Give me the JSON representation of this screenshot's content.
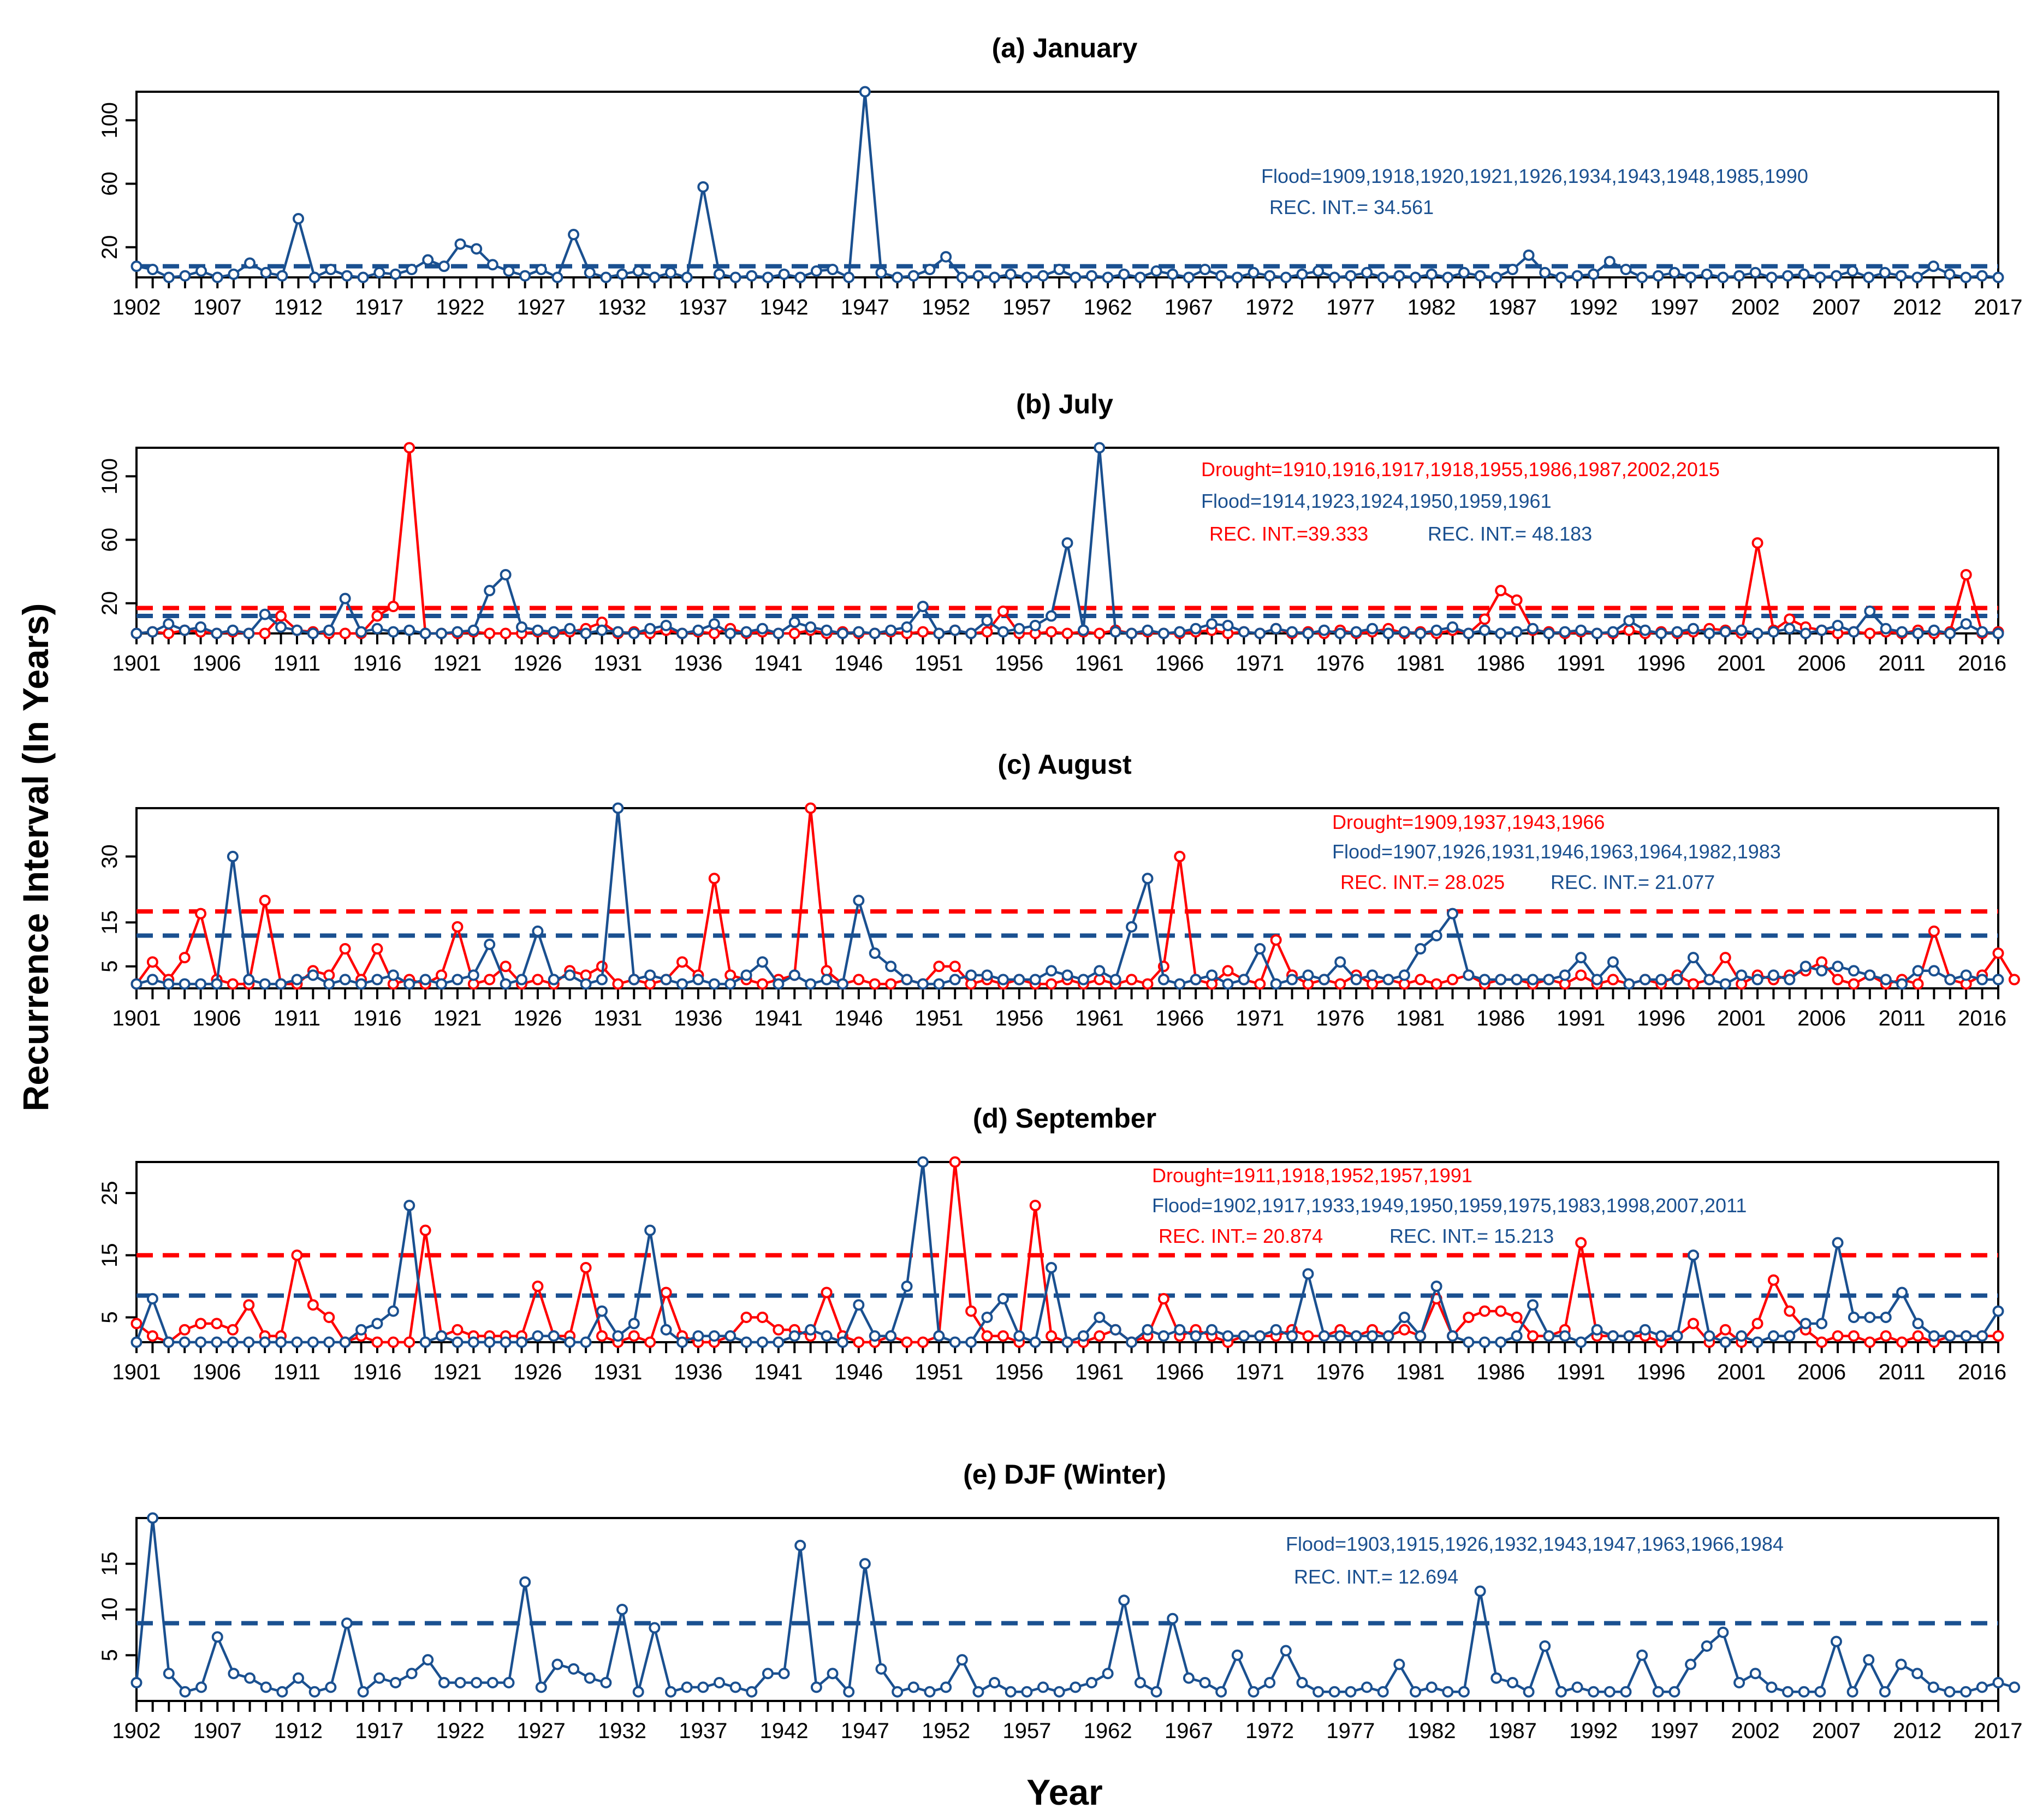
{
  "figure": {
    "ylabel": "Recurrence Interval (In Years)",
    "xlabel": "Year",
    "colors": {
      "flood": "#1a5090",
      "drought": "#ff0000",
      "axis": "#000000"
    }
  },
  "chart_data": [
    {
      "id": "a",
      "type": "line",
      "title": "(a) January",
      "x_start": 1902,
      "x_end": 2017,
      "x_tick_step": 5,
      "ylim": [
        1,
        118
      ],
      "yticks": [
        20,
        60,
        100
      ],
      "flood_threshold": 8.0,
      "series": [
        {
          "name": "Flood",
          "color": "#1a5090",
          "marker": "circle",
          "values": [
            8,
            6,
            1,
            2,
            5,
            1,
            3,
            10,
            4,
            2,
            38,
            1,
            6,
            2,
            1,
            4,
            3,
            6,
            12,
            8,
            22,
            19,
            9,
            5,
            2,
            6,
            1,
            28,
            4,
            1,
            3,
            5,
            1,
            4,
            1,
            58,
            3,
            1,
            2,
            1,
            3,
            1,
            5,
            6,
            1,
            118,
            4,
            1,
            2,
            6,
            14,
            1,
            2,
            1,
            3,
            1,
            2,
            6,
            1,
            2,
            1,
            3,
            1,
            5,
            3,
            1,
            6,
            2,
            1,
            4,
            2,
            1,
            3,
            5,
            1,
            2,
            4,
            1,
            2,
            1,
            3,
            1,
            4,
            2,
            1,
            6,
            15,
            4,
            1,
            2,
            3,
            11,
            6,
            1,
            2,
            4,
            1,
            3,
            1,
            2,
            4,
            1,
            2,
            3,
            1,
            2,
            5,
            1,
            4,
            2,
            1,
            8,
            3,
            1,
            2,
            1
          ]
        }
      ],
      "annotations": [
        {
          "text": "Flood=1909,1918,1920,1921,1926,1934,1943,1948,1985,1990",
          "color": "#1a5090"
        },
        {
          "text": "REC. INT.= 34.561",
          "color": "#1a5090"
        }
      ]
    },
    {
      "id": "b",
      "type": "line",
      "title": "(b) July",
      "x_start": 1901,
      "x_end": 2017,
      "x_tick_step": 5,
      "ylim": [
        1,
        118
      ],
      "yticks": [
        20,
        60,
        100
      ],
      "flood_threshold": 12.0,
      "drought_threshold": 17.0,
      "series": [
        {
          "name": "Flood",
          "color": "#1a5090",
          "marker": "circle",
          "values": [
            1,
            2,
            7,
            3,
            5,
            1,
            3,
            1,
            13,
            5,
            3,
            1,
            3,
            23,
            2,
            4,
            2,
            3,
            1,
            1,
            2,
            3,
            28,
            38,
            5,
            3,
            2,
            4,
            1,
            3,
            2,
            1,
            4,
            6,
            1,
            3,
            7,
            1,
            2,
            4,
            1,
            8,
            5,
            3,
            1,
            2,
            1,
            3,
            5,
            18,
            1,
            3,
            1,
            9,
            2,
            4,
            6,
            12,
            58,
            3,
            118,
            2,
            1,
            3,
            1,
            2,
            4,
            7,
            6,
            2,
            1,
            4,
            2,
            1,
            3,
            1,
            2,
            4,
            1,
            2,
            1,
            3,
            5,
            1,
            3,
            1,
            2,
            4,
            1,
            2,
            3,
            1,
            2,
            9,
            3,
            1,
            2,
            4,
            1,
            2,
            3,
            1,
            2,
            4,
            1,
            3,
            6,
            2,
            15,
            4,
            2,
            1,
            3,
            1,
            7,
            2,
            1
          ]
        },
        {
          "name": "Drought",
          "color": "#ff0000",
          "marker": "circle",
          "values": [
            1,
            2,
            1,
            3,
            2,
            1,
            2,
            1,
            1,
            12,
            3,
            2,
            1,
            1,
            1,
            12,
            18,
            118,
            1,
            1,
            1,
            2,
            1,
            1,
            1,
            2,
            1,
            2,
            4,
            8,
            1,
            2,
            1,
            3,
            1,
            2,
            1,
            4,
            1,
            2,
            1,
            1,
            3,
            1,
            2,
            1,
            1,
            2,
            1,
            2,
            1,
            3,
            1,
            2,
            15,
            1,
            1,
            2,
            1,
            2,
            1,
            3,
            1,
            2,
            1,
            1,
            2,
            3,
            1,
            2,
            1,
            4,
            1,
            2,
            1,
            3,
            1,
            2,
            4,
            1,
            2,
            1,
            3,
            1,
            10,
            28,
            22,
            3,
            2,
            1,
            2,
            1,
            1,
            3,
            1,
            2,
            1,
            2,
            4,
            3,
            1,
            58,
            3,
            10,
            5,
            3,
            1,
            2,
            1,
            2,
            1,
            3,
            1,
            2,
            38,
            1,
            2
          ]
        }
      ],
      "annotations": [
        {
          "text": "Drought=1910,1916,1917,1918,1955,1986,1987,2002,2015",
          "color": "#ff0000"
        },
        {
          "text": "Flood=1914,1923,1924,1950,1959,1961",
          "color": "#1a5090"
        },
        {
          "text": "REC. INT.=39.333",
          "color": "#ff0000"
        },
        {
          "text": "REC. INT.= 48.183",
          "color": "#1a5090"
        }
      ]
    },
    {
      "id": "c",
      "type": "line",
      "title": "(c) August",
      "x_start": 1901,
      "x_end": 2017,
      "x_tick_step": 5,
      "ylim": [
        0,
        41
      ],
      "yticks": [
        5,
        15,
        30
      ],
      "flood_threshold": 12.0,
      "drought_threshold": 17.5,
      "series": [
        {
          "name": "Flood",
          "color": "#1a5090",
          "marker": "circle",
          "values": [
            1,
            2,
            1,
            1,
            1,
            1,
            30,
            2,
            1,
            1,
            2,
            3,
            1,
            2,
            1,
            2,
            3,
            1,
            2,
            1,
            2,
            3,
            10,
            1,
            2,
            13,
            2,
            3,
            1,
            2,
            41,
            2,
            3,
            2,
            1,
            2,
            1,
            1,
            3,
            6,
            1,
            3,
            1,
            2,
            1,
            20,
            8,
            5,
            2,
            1,
            1,
            2,
            3,
            3,
            2,
            2,
            2,
            4,
            3,
            2,
            4,
            2,
            14,
            25,
            2,
            1,
            2,
            3,
            1,
            2,
            9,
            1,
            2,
            3,
            2,
            6,
            2,
            3,
            2,
            3,
            9,
            12,
            17,
            3,
            2,
            2,
            2,
            2,
            2,
            3,
            7,
            2,
            6,
            1,
            2,
            2,
            2,
            7,
            2,
            1,
            3,
            2,
            3,
            2,
            5,
            4,
            5,
            4,
            3,
            2,
            1,
            4,
            4,
            2,
            3,
            2,
            2
          ]
        },
        {
          "name": "Drought",
          "color": "#ff0000",
          "marker": "circle",
          "values": [
            1,
            6,
            2,
            7,
            17,
            2,
            1,
            1,
            20,
            1,
            1,
            4,
            3,
            9,
            2,
            9,
            1,
            2,
            1,
            3,
            14,
            1,
            2,
            5,
            1,
            2,
            1,
            4,
            3,
            5,
            1,
            2,
            1,
            2,
            6,
            3,
            25,
            3,
            2,
            1,
            2,
            3,
            41,
            4,
            1,
            2,
            1,
            1,
            2,
            1,
            5,
            5,
            1,
            2,
            1,
            2,
            1,
            1,
            2,
            1,
            2,
            1,
            2,
            1,
            5,
            30,
            2,
            1,
            4,
            2,
            1,
            11,
            3,
            1,
            2,
            1,
            3,
            1,
            2,
            1,
            2,
            1,
            2,
            3,
            1,
            2,
            2,
            1,
            2,
            1,
            3,
            1,
            2,
            1,
            2,
            1,
            3,
            1,
            2,
            7,
            1,
            3,
            2,
            3,
            4,
            6,
            2,
            1,
            3,
            1,
            2,
            1,
            13,
            2,
            1,
            3,
            8,
            2
          ]
        }
      ],
      "annotations": [
        {
          "text": "Drought=1909,1937,1943,1966",
          "color": "#ff0000"
        },
        {
          "text": "Flood=1907,1926,1931,1946,1963,1964,1982,1983",
          "color": "#1a5090"
        },
        {
          "text": "REC. INT.= 28.025",
          "color": "#ff0000"
        },
        {
          "text": "REC. INT.= 21.077",
          "color": "#1a5090"
        }
      ]
    },
    {
      "id": "d",
      "type": "line",
      "title": "(d) September",
      "x_start": 1901,
      "x_end": 2017,
      "x_tick_step": 5,
      "ylim": [
        1,
        30
      ],
      "yticks": [
        5,
        15,
        25
      ],
      "flood_threshold": 8.5,
      "drought_threshold": 15.0,
      "series": [
        {
          "name": "Flood",
          "color": "#1a5090",
          "marker": "circle",
          "values": [
            1,
            8,
            1,
            1,
            1,
            1,
            1,
            1,
            1,
            1,
            1,
            1,
            1,
            1,
            3,
            4,
            6,
            23,
            1,
            2,
            1,
            1,
            1,
            1,
            1,
            2,
            2,
            1,
            1,
            6,
            2,
            4,
            19,
            3,
            1,
            2,
            2,
            2,
            1,
            1,
            1,
            2,
            3,
            2,
            1,
            7,
            2,
            2,
            10,
            30,
            2,
            1,
            1,
            5,
            8,
            2,
            1,
            13,
            1,
            2,
            5,
            3,
            1,
            3,
            2,
            3,
            2,
            3,
            2,
            2,
            2,
            3,
            2,
            12,
            2,
            2,
            2,
            2,
            2,
            5,
            2,
            10,
            2,
            1,
            1,
            1,
            2,
            7,
            2,
            2,
            1,
            3,
            2,
            2,
            3,
            2,
            2,
            15,
            2,
            1,
            2,
            1,
            2,
            2,
            4,
            4,
            17,
            5,
            5,
            5,
            9,
            4,
            2,
            2,
            2,
            2,
            6
          ]
        },
        {
          "name": "Drought",
          "color": "#ff0000",
          "marker": "circle",
          "values": [
            4,
            2,
            1,
            3,
            4,
            4,
            3,
            7,
            2,
            2,
            15,
            7,
            5,
            1,
            2,
            1,
            1,
            1,
            19,
            2,
            3,
            2,
            2,
            2,
            2,
            10,
            2,
            2,
            13,
            2,
            1,
            2,
            1,
            9,
            2,
            1,
            1,
            2,
            5,
            5,
            3,
            3,
            2,
            9,
            2,
            1,
            1,
            2,
            1,
            1,
            2,
            30,
            6,
            2,
            2,
            1,
            23,
            2,
            1,
            1,
            2,
            3,
            1,
            2,
            8,
            2,
            3,
            2,
            1,
            2,
            2,
            2,
            3,
            2,
            2,
            3,
            2,
            3,
            2,
            3,
            2,
            8,
            2,
            5,
            6,
            6,
            5,
            2,
            2,
            3,
            17,
            2,
            2,
            2,
            2,
            1,
            2,
            4,
            1,
            3,
            1,
            4,
            11,
            6,
            3,
            1,
            2,
            2,
            1,
            2,
            1,
            2,
            1,
            2,
            2,
            2,
            2
          ]
        }
      ],
      "annotations": [
        {
          "text": "Drought=1911,1918,1952,1957,1991",
          "color": "#ff0000"
        },
        {
          "text": "Flood=1902,1917,1933,1949,1950,1959,1975,1983,1998,2007,2011",
          "color": "#1a5090"
        },
        {
          "text": "REC. INT.= 20.874",
          "color": "#ff0000"
        },
        {
          "text": "REC. INT.= 15.213",
          "color": "#1a5090"
        }
      ]
    },
    {
      "id": "e",
      "type": "line",
      "title": "(e) DJF (Winter)",
      "x_start": 1902,
      "x_end": 2017,
      "x_tick_step": 5,
      "ylim": [
        0,
        20
      ],
      "yticks": [
        5,
        10,
        15
      ],
      "flood_threshold": 8.5,
      "series": [
        {
          "name": "Flood",
          "color": "#1a5090",
          "marker": "circle",
          "values": [
            2,
            20,
            3,
            1,
            1.5,
            7,
            3,
            2.5,
            1.5,
            1,
            2.5,
            1,
            1.5,
            8.5,
            1,
            2.5,
            2,
            3,
            4.5,
            2,
            2,
            2,
            2,
            2,
            13,
            1.5,
            4,
            3.5,
            2.5,
            2,
            10,
            1,
            8,
            1,
            1.5,
            1.5,
            2,
            1.5,
            1,
            3,
            3,
            17,
            1.5,
            3,
            1,
            15,
            3.5,
            1,
            1.5,
            1,
            1.5,
            4.5,
            1,
            2,
            1,
            1,
            1.5,
            1,
            1.5,
            2,
            3,
            11,
            2,
            1,
            9,
            2.5,
            2,
            1,
            5,
            1,
            2,
            5.5,
            2,
            1,
            1,
            1,
            1.5,
            1,
            4,
            1,
            1.5,
            1,
            1,
            12,
            2.5,
            2,
            1,
            6,
            1,
            1.5,
            1,
            1,
            1,
            5,
            1,
            1,
            4,
            6,
            7.5,
            2,
            3,
            1.5,
            1,
            1,
            1,
            6.5,
            1,
            4.5,
            1,
            4,
            3,
            1.5,
            1,
            1,
            1.5,
            2,
            1.5
          ]
        }
      ],
      "annotations": [
        {
          "text": "Flood=1903,1915,1926,1932,1943,1947,1963,1966,1984",
          "color": "#1a5090"
        },
        {
          "text": "REC. INT.= 12.694",
          "color": "#1a5090"
        }
      ]
    }
  ]
}
